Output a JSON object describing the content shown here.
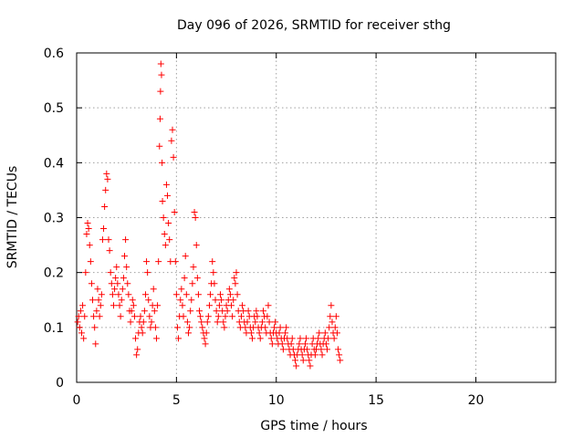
{
  "chart_data": {
    "type": "scatter",
    "title": "Day 096 of 2026, SRMTID for receiver sthg",
    "xlabel": "GPS time / hours",
    "ylabel": "SRMTID / TECUs",
    "xlim": [
      0,
      24
    ],
    "ylim": [
      0,
      0.6
    ],
    "x_ticks": [
      0,
      5,
      10,
      15,
      20
    ],
    "y_ticks": [
      0,
      0.1,
      0.2,
      0.3,
      0.4,
      0.5,
      0.6
    ],
    "y_tick_labels": [
      "0",
      "0.1",
      "0.2",
      "0.3",
      "0.4",
      "0.5",
      "0.6"
    ],
    "grid": true,
    "marker": "+",
    "series": [
      {
        "name": "SRMTID",
        "color": "#ff0000",
        "points": [
          [
            0.05,
            0.11
          ],
          [
            0.1,
            0.12
          ],
          [
            0.15,
            0.1
          ],
          [
            0.2,
            0.13
          ],
          [
            0.25,
            0.09
          ],
          [
            0.3,
            0.14
          ],
          [
            0.35,
            0.08
          ],
          [
            0.4,
            0.12
          ],
          [
            0.45,
            0.2
          ],
          [
            0.5,
            0.27
          ],
          [
            0.55,
            0.29
          ],
          [
            0.6,
            0.28
          ],
          [
            0.65,
            0.25
          ],
          [
            0.7,
            0.22
          ],
          [
            0.75,
            0.18
          ],
          [
            0.8,
            0.15
          ],
          [
            0.85,
            0.12
          ],
          [
            0.9,
            0.1
          ],
          [
            0.95,
            0.07
          ],
          [
            1.0,
            0.13
          ],
          [
            1.05,
            0.17
          ],
          [
            1.1,
            0.15
          ],
          [
            1.15,
            0.12
          ],
          [
            1.2,
            0.14
          ],
          [
            1.25,
            0.16
          ],
          [
            1.3,
            0.26
          ],
          [
            1.35,
            0.28
          ],
          [
            1.4,
            0.32
          ],
          [
            1.45,
            0.35
          ],
          [
            1.5,
            0.38
          ],
          [
            1.55,
            0.37
          ],
          [
            1.6,
            0.26
          ],
          [
            1.65,
            0.24
          ],
          [
            1.7,
            0.2
          ],
          [
            1.75,
            0.18
          ],
          [
            1.8,
            0.16
          ],
          [
            1.85,
            0.14
          ],
          [
            1.9,
            0.17
          ],
          [
            1.95,
            0.19
          ],
          [
            2.0,
            0.21
          ],
          [
            2.05,
            0.18
          ],
          [
            2.1,
            0.16
          ],
          [
            2.15,
            0.14
          ],
          [
            2.2,
            0.12
          ],
          [
            2.25,
            0.15
          ],
          [
            2.3,
            0.17
          ],
          [
            2.35,
            0.19
          ],
          [
            2.4,
            0.23
          ],
          [
            2.45,
            0.26
          ],
          [
            2.5,
            0.21
          ],
          [
            2.55,
            0.18
          ],
          [
            2.6,
            0.16
          ],
          [
            2.65,
            0.13
          ],
          [
            2.7,
            0.11
          ],
          [
            2.75,
            0.13
          ],
          [
            2.8,
            0.15
          ],
          [
            2.85,
            0.14
          ],
          [
            2.9,
            0.12
          ],
          [
            2.95,
            0.08
          ],
          [
            3.0,
            0.05
          ],
          [
            3.05,
            0.06
          ],
          [
            3.1,
            0.09
          ],
          [
            3.15,
            0.11
          ],
          [
            3.2,
            0.12
          ],
          [
            3.25,
            0.1
          ],
          [
            3.3,
            0.09
          ],
          [
            3.35,
            0.11
          ],
          [
            3.4,
            0.13
          ],
          [
            3.45,
            0.16
          ],
          [
            3.5,
            0.22
          ],
          [
            3.55,
            0.2
          ],
          [
            3.6,
            0.15
          ],
          [
            3.65,
            0.12
          ],
          [
            3.7,
            0.1
          ],
          [
            3.75,
            0.11
          ],
          [
            3.8,
            0.14
          ],
          [
            3.85,
            0.17
          ],
          [
            3.9,
            0.13
          ],
          [
            3.95,
            0.1
          ],
          [
            4.0,
            0.08
          ],
          [
            4.05,
            0.14
          ],
          [
            4.1,
            0.22
          ],
          [
            4.15,
            0.43
          ],
          [
            4.18,
            0.48
          ],
          [
            4.2,
            0.53
          ],
          [
            4.22,
            0.58
          ],
          [
            4.25,
            0.56
          ],
          [
            4.28,
            0.4
          ],
          [
            4.3,
            0.33
          ],
          [
            4.35,
            0.3
          ],
          [
            4.4,
            0.27
          ],
          [
            4.45,
            0.25
          ],
          [
            4.5,
            0.36
          ],
          [
            4.55,
            0.34
          ],
          [
            4.6,
            0.29
          ],
          [
            4.65,
            0.26
          ],
          [
            4.7,
            0.22
          ],
          [
            4.75,
            0.44
          ],
          [
            4.8,
            0.46
          ],
          [
            4.85,
            0.41
          ],
          [
            4.9,
            0.31
          ],
          [
            4.95,
            0.22
          ],
          [
            5.0,
            0.16
          ],
          [
            5.05,
            0.1
          ],
          [
            5.1,
            0.08
          ],
          [
            5.15,
            0.12
          ],
          [
            5.2,
            0.15
          ],
          [
            5.25,
            0.17
          ],
          [
            5.3,
            0.14
          ],
          [
            5.35,
            0.12
          ],
          [
            5.4,
            0.19
          ],
          [
            5.45,
            0.23
          ],
          [
            5.5,
            0.16
          ],
          [
            5.55,
            0.11
          ],
          [
            5.6,
            0.09
          ],
          [
            5.65,
            0.1
          ],
          [
            5.7,
            0.13
          ],
          [
            5.75,
            0.15
          ],
          [
            5.8,
            0.18
          ],
          [
            5.85,
            0.21
          ],
          [
            5.9,
            0.31
          ],
          [
            5.95,
            0.3
          ],
          [
            6.0,
            0.25
          ],
          [
            6.05,
            0.19
          ],
          [
            6.1,
            0.16
          ],
          [
            6.15,
            0.13
          ],
          [
            6.2,
            0.12
          ],
          [
            6.25,
            0.11
          ],
          [
            6.3,
            0.1
          ],
          [
            6.35,
            0.09
          ],
          [
            6.4,
            0.08
          ],
          [
            6.45,
            0.07
          ],
          [
            6.5,
            0.09
          ],
          [
            6.55,
            0.11
          ],
          [
            6.6,
            0.12
          ],
          [
            6.65,
            0.14
          ],
          [
            6.7,
            0.16
          ],
          [
            6.75,
            0.18
          ],
          [
            6.8,
            0.22
          ],
          [
            6.85,
            0.2
          ],
          [
            6.9,
            0.18
          ],
          [
            6.95,
            0.15
          ],
          [
            7.0,
            0.13
          ],
          [
            7.05,
            0.11
          ],
          [
            7.1,
            0.12
          ],
          [
            7.15,
            0.14
          ],
          [
            7.2,
            0.16
          ],
          [
            7.25,
            0.15
          ],
          [
            7.3,
            0.13
          ],
          [
            7.35,
            0.11
          ],
          [
            7.4,
            0.1
          ],
          [
            7.45,
            0.12
          ],
          [
            7.5,
            0.14
          ],
          [
            7.55,
            0.13
          ],
          [
            7.6,
            0.15
          ],
          [
            7.65,
            0.17
          ],
          [
            7.7,
            0.16
          ],
          [
            7.75,
            0.14
          ],
          [
            7.8,
            0.12
          ],
          [
            7.85,
            0.15
          ],
          [
            7.9,
            0.19
          ],
          [
            7.95,
            0.18
          ],
          [
            8.0,
            0.2
          ],
          [
            8.05,
            0.16
          ],
          [
            8.1,
            0.13
          ],
          [
            8.15,
            0.11
          ],
          [
            8.2,
            0.1
          ],
          [
            8.25,
            0.12
          ],
          [
            8.3,
            0.14
          ],
          [
            8.35,
            0.13
          ],
          [
            8.4,
            0.11
          ],
          [
            8.45,
            0.1
          ],
          [
            8.5,
            0.09
          ],
          [
            8.55,
            0.11
          ],
          [
            8.6,
            0.13
          ],
          [
            8.65,
            0.12
          ],
          [
            8.7,
            0.1
          ],
          [
            8.75,
            0.09
          ],
          [
            8.8,
            0.08
          ],
          [
            8.85,
            0.1
          ],
          [
            8.9,
            0.12
          ],
          [
            8.95,
            0.11
          ],
          [
            9.0,
            0.13
          ],
          [
            9.05,
            0.12
          ],
          [
            9.1,
            0.1
          ],
          [
            9.15,
            0.09
          ],
          [
            9.2,
            0.08
          ],
          [
            9.25,
            0.1
          ],
          [
            9.3,
            0.11
          ],
          [
            9.35,
            0.13
          ],
          [
            9.4,
            0.12
          ],
          [
            9.45,
            0.1
          ],
          [
            9.5,
            0.09
          ],
          [
            9.55,
            0.12
          ],
          [
            9.6,
            0.14
          ],
          [
            9.65,
            0.11
          ],
          [
            9.7,
            0.09
          ],
          [
            9.75,
            0.08
          ],
          [
            9.8,
            0.07
          ],
          [
            9.85,
            0.09
          ],
          [
            9.9,
            0.1
          ],
          [
            9.95,
            0.11
          ],
          [
            10.0,
            0.09
          ],
          [
            10.05,
            0.08
          ],
          [
            10.1,
            0.07
          ],
          [
            10.15,
            0.09
          ],
          [
            10.2,
            0.1
          ],
          [
            10.25,
            0.08
          ],
          [
            10.3,
            0.07
          ],
          [
            10.35,
            0.06
          ],
          [
            10.4,
            0.08
          ],
          [
            10.45,
            0.09
          ],
          [
            10.5,
            0.1
          ],
          [
            10.55,
            0.08
          ],
          [
            10.6,
            0.07
          ],
          [
            10.65,
            0.06
          ],
          [
            10.7,
            0.05
          ],
          [
            10.75,
            0.07
          ],
          [
            10.8,
            0.08
          ],
          [
            10.85,
            0.06
          ],
          [
            10.9,
            0.05
          ],
          [
            10.95,
            0.04
          ],
          [
            11.0,
            0.03
          ],
          [
            11.05,
            0.05
          ],
          [
            11.1,
            0.06
          ],
          [
            11.15,
            0.07
          ],
          [
            11.2,
            0.08
          ],
          [
            11.25,
            0.06
          ],
          [
            11.3,
            0.05
          ],
          [
            11.35,
            0.04
          ],
          [
            11.4,
            0.06
          ],
          [
            11.45,
            0.07
          ],
          [
            11.5,
            0.08
          ],
          [
            11.55,
            0.06
          ],
          [
            11.6,
            0.05
          ],
          [
            11.65,
            0.04
          ],
          [
            11.7,
            0.03
          ],
          [
            11.75,
            0.05
          ],
          [
            11.8,
            0.07
          ],
          [
            11.85,
            0.08
          ],
          [
            11.9,
            0.06
          ],
          [
            11.95,
            0.05
          ],
          [
            12.0,
            0.06
          ],
          [
            12.05,
            0.07
          ],
          [
            12.1,
            0.08
          ],
          [
            12.15,
            0.09
          ],
          [
            12.2,
            0.07
          ],
          [
            12.25,
            0.06
          ],
          [
            12.3,
            0.05
          ],
          [
            12.35,
            0.07
          ],
          [
            12.4,
            0.08
          ],
          [
            12.45,
            0.09
          ],
          [
            12.5,
            0.07
          ],
          [
            12.55,
            0.06
          ],
          [
            12.6,
            0.08
          ],
          [
            12.65,
            0.1
          ],
          [
            12.7,
            0.12
          ],
          [
            12.75,
            0.14
          ],
          [
            12.8,
            0.11
          ],
          [
            12.85,
            0.09
          ],
          [
            12.9,
            0.08
          ],
          [
            12.95,
            0.1
          ],
          [
            13.0,
            0.12
          ],
          [
            13.05,
            0.09
          ],
          [
            13.1,
            0.06
          ],
          [
            13.15,
            0.05
          ],
          [
            13.2,
            0.04
          ]
        ]
      }
    ]
  }
}
